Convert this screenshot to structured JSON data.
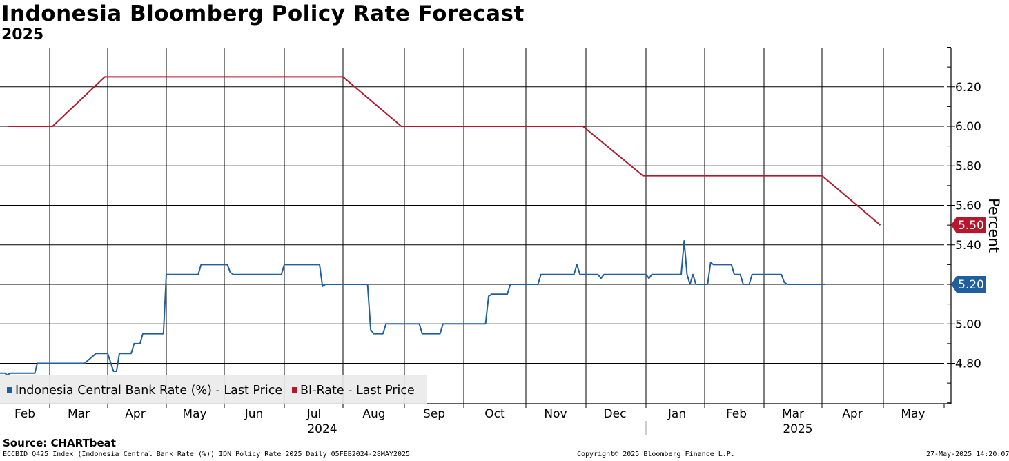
{
  "chart_data": {
    "type": "line",
    "title": "Indonesia Bloomberg Policy Rate Forecast",
    "subtitle": "2025",
    "ylabel": "Percent",
    "ylim": [
      4.6,
      6.4
    ],
    "y_ticks": [
      "4.80",
      "5.00",
      "5.20",
      "5.40",
      "5.60",
      "5.80",
      "6.00",
      "6.20"
    ],
    "x_month_labels": [
      "Feb",
      "Mar",
      "Apr",
      "May",
      "Jun",
      "Jul",
      "Aug",
      "Sep",
      "Oct",
      "Nov",
      "Dec",
      "Jan",
      "Feb",
      "Mar",
      "Apr",
      "May"
    ],
    "x_year_labels": [
      "2024",
      "2025"
    ],
    "grid": true,
    "legend_position": "bottom-left",
    "series": [
      {
        "name": "Indonesia Central Bank Rate (%) - Last Price",
        "color": "#1f5fa0",
        "last_value": "5.20",
        "points": [
          [
            0.0,
            4.75
          ],
          [
            0.1,
            4.75
          ],
          [
            0.15,
            4.74
          ],
          [
            0.2,
            4.75
          ],
          [
            0.7,
            4.75
          ],
          [
            0.75,
            4.8
          ],
          [
            1.6,
            4.8
          ],
          [
            1.8,
            4.85
          ],
          [
            2.0,
            4.85
          ],
          [
            2.1,
            4.76
          ],
          [
            2.15,
            4.76
          ],
          [
            2.2,
            4.85
          ],
          [
            2.4,
            4.85
          ],
          [
            2.45,
            4.9
          ],
          [
            2.55,
            4.9
          ],
          [
            2.6,
            4.95
          ],
          [
            2.95,
            4.95
          ],
          [
            3.0,
            5.25
          ],
          [
            3.55,
            5.25
          ],
          [
            3.6,
            5.3
          ],
          [
            4.05,
            5.3
          ],
          [
            4.1,
            5.26
          ],
          [
            4.15,
            5.25
          ],
          [
            4.95,
            5.25
          ],
          [
            5.0,
            5.3
          ],
          [
            5.6,
            5.3
          ],
          [
            5.65,
            5.19
          ],
          [
            5.7,
            5.2
          ],
          [
            6.4,
            5.2
          ],
          [
            6.45,
            4.97
          ],
          [
            6.5,
            4.95
          ],
          [
            6.65,
            4.95
          ],
          [
            6.7,
            5.0
          ],
          [
            7.25,
            5.0
          ],
          [
            7.3,
            4.95
          ],
          [
            7.6,
            4.95
          ],
          [
            7.65,
            5.0
          ],
          [
            8.35,
            5.0
          ],
          [
            8.4,
            5.14
          ],
          [
            8.45,
            5.15
          ],
          [
            8.7,
            5.15
          ],
          [
            8.75,
            5.2
          ],
          [
            9.2,
            5.2
          ],
          [
            9.25,
            5.25
          ],
          [
            9.8,
            5.25
          ],
          [
            9.85,
            5.3
          ],
          [
            9.9,
            5.25
          ],
          [
            10.2,
            5.25
          ],
          [
            10.25,
            5.23
          ],
          [
            10.3,
            5.25
          ],
          [
            11.0,
            5.25
          ],
          [
            11.05,
            5.23
          ],
          [
            11.1,
            5.25
          ],
          [
            11.6,
            5.25
          ],
          [
            11.65,
            5.42
          ],
          [
            11.7,
            5.25
          ],
          [
            11.75,
            5.2
          ],
          [
            11.8,
            5.25
          ],
          [
            11.85,
            5.2
          ],
          [
            12.05,
            5.2
          ],
          [
            12.1,
            5.31
          ],
          [
            12.15,
            5.3
          ],
          [
            12.45,
            5.3
          ],
          [
            12.5,
            5.25
          ],
          [
            12.6,
            5.25
          ],
          [
            12.65,
            5.2
          ],
          [
            12.75,
            5.2
          ],
          [
            12.8,
            5.25
          ],
          [
            13.3,
            5.25
          ],
          [
            13.35,
            5.21
          ],
          [
            13.4,
            5.2
          ],
          [
            14.05,
            5.2
          ]
        ]
      },
      {
        "name": "BI-Rate - Last Price",
        "color": "#b3182d",
        "last_value": "5.50",
        "points": [
          [
            0.15,
            6.0
          ],
          [
            1.05,
            6.0
          ],
          [
            1.95,
            6.25
          ],
          [
            6.0,
            6.25
          ],
          [
            6.95,
            6.0
          ],
          [
            9.95,
            6.0
          ],
          [
            10.95,
            5.75
          ],
          [
            14.0,
            5.75
          ],
          [
            14.95,
            5.5
          ]
        ]
      }
    ],
    "source": "Source: CHARTbeat",
    "footer_left": "ECCBID Q425 Index (Indonesia Central Bank Rate (%)) IDN Policy Rate 2025  Daily 05FEB2024-28MAY2025",
    "footer_center": "Copyright© 2025 Bloomberg Finance L.P.",
    "footer_right": "27-May-2025 14:20:07"
  }
}
